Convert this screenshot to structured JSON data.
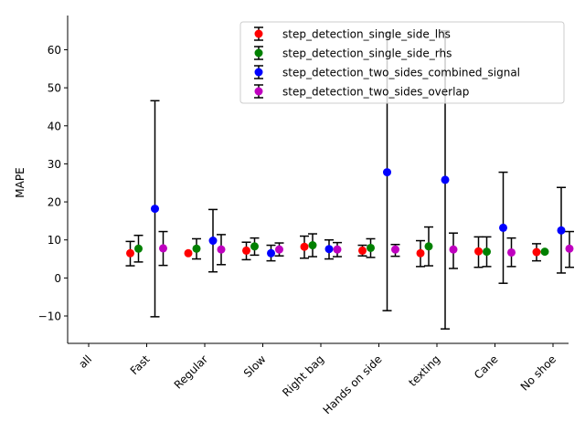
{
  "chart_data": {
    "type": "scatter",
    "title": "",
    "xlabel": "",
    "ylabel": "MAPE",
    "ylim": [
      -17.2,
      69.0
    ],
    "yticks": [
      -10,
      0,
      10,
      20,
      30,
      40,
      50,
      60
    ],
    "categories": [
      "all",
      "Fast",
      "Regular",
      "Slow",
      "Right bag",
      "Hands on side",
      "texting",
      "Cane",
      "No shoe"
    ],
    "grid": false,
    "legend_position": "top-right",
    "series": [
      {
        "name": "step_detection_single_side_lhs",
        "color": "#ff0000",
        "values": [
          null,
          6.5,
          6.5,
          7.2,
          8.2,
          7.2,
          6.5,
          7.0,
          6.8
        ],
        "err_low": [
          null,
          3.2,
          null,
          4.8,
          5.2,
          5.8,
          3.0,
          2.8,
          4.5
        ],
        "err_high": [
          null,
          9.6,
          null,
          9.4,
          11.0,
          8.6,
          9.8,
          10.8,
          9.0
        ]
      },
      {
        "name": "step_detection_single_side_rhs",
        "color": "#008000",
        "values": [
          null,
          7.7,
          7.7,
          8.3,
          8.6,
          7.9,
          8.3,
          6.9,
          6.9
        ],
        "err_low": [
          null,
          4.2,
          5.0,
          6.0,
          5.6,
          5.4,
          3.2,
          3.0,
          null
        ],
        "err_high": [
          null,
          11.2,
          10.3,
          10.5,
          11.6,
          10.3,
          13.4,
          10.8,
          null
        ]
      },
      {
        "name": "step_detection_two_sides_combined_signal",
        "color": "#0000ff",
        "values": [
          null,
          18.2,
          9.8,
          6.5,
          7.6,
          27.8,
          25.8,
          13.2,
          12.5
        ],
        "err_low": [
          null,
          -10.2,
          1.6,
          4.5,
          5.0,
          -8.6,
          -13.4,
          -1.4,
          1.3
        ],
        "err_high": [
          null,
          46.6,
          18.0,
          8.6,
          10.0,
          64.4,
          65.0,
          27.8,
          23.8
        ]
      },
      {
        "name": "step_detection_two_sides_overlap",
        "color": "#bf00bf",
        "values": [
          null,
          7.8,
          7.5,
          7.5,
          7.5,
          7.5,
          7.5,
          6.7,
          7.7
        ],
        "err_low": [
          null,
          3.3,
          3.5,
          5.8,
          5.6,
          5.7,
          2.5,
          3.0,
          2.8
        ],
        "err_high": [
          null,
          12.2,
          11.4,
          9.2,
          9.3,
          8.8,
          11.8,
          10.5,
          12.2
        ]
      }
    ]
  }
}
